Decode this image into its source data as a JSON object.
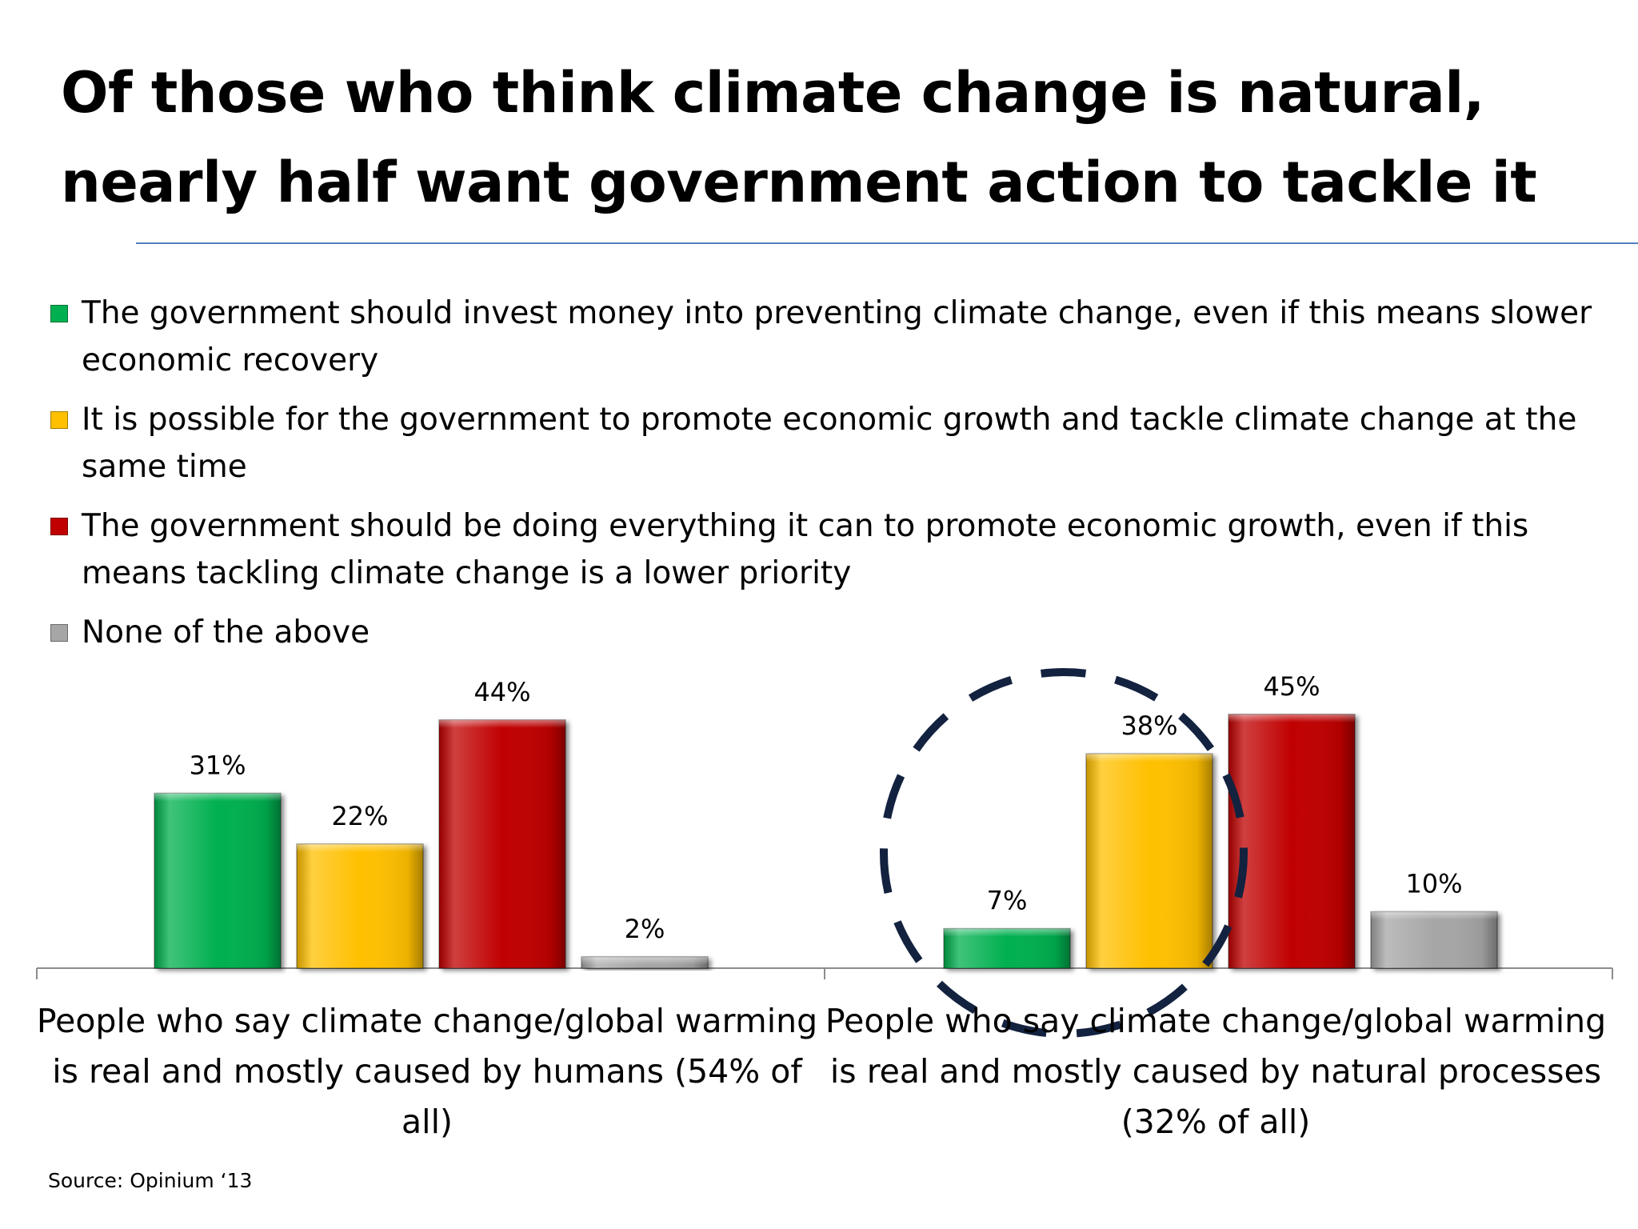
{
  "title_lines": [
    "Of those who think climate change is natural,",
    "nearly half want government action to tackle it"
  ],
  "legend": [
    {
      "label": "The government should invest money into preventing climate change, even if  this means slower economic recovery",
      "color": "#00b050"
    },
    {
      "label": "It is possible for the government to promote economic growth and tackle climate change at the same time",
      "color": "#ffc000"
    },
    {
      "label": "The government should be doing everything it can to promote economic growth, even if this means tackling climate change is a lower priority",
      "color": "#c00000"
    },
    {
      "label": "None of the above",
      "color": "#a6a6a6"
    }
  ],
  "chart_data": {
    "type": "bar",
    "title": "Of those who think climate change is natural, nearly half want government action to tackle it",
    "categories": [
      "People who say climate change/global warming is real and mostly caused by humans (54% of all)",
      "People who say climate change/global warming is real and mostly caused by natural processes (32% of all)"
    ],
    "series": [
      {
        "name": "The government should invest money into preventing climate change, even if  this means slower economic recovery",
        "values": [
          31,
          7
        ],
        "labels": [
          "31%",
          "7%"
        ],
        "color": "#00b050"
      },
      {
        "name": "It is possible for the government to promote economic growth and tackle climate change at the same time",
        "values": [
          22,
          38
        ],
        "labels": [
          "22%",
          "38%"
        ],
        "color": "#ffc000"
      },
      {
        "name": "The government should be doing everything it can to promote economic growth, even if this means tackling climate change is a lower priority",
        "values": [
          44,
          45
        ],
        "labels": [
          "44%",
          "45%"
        ],
        "color": "#c00000"
      },
      {
        "name": "None of the above",
        "values": [
          2,
          10
        ],
        "labels": [
          "2%",
          "10%"
        ],
        "color": "#a6a6a6"
      }
    ],
    "ylim": [
      0,
      50
    ],
    "grid": false,
    "legend_position": "top",
    "annotation": "dashed circle around the natural-processes group's first two bars"
  },
  "source": "Source: Opinium ‘13"
}
